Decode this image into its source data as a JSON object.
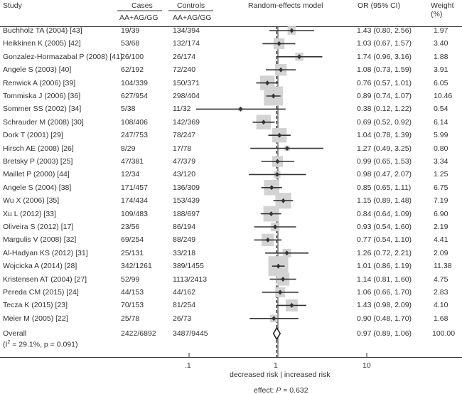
{
  "chart_data": {
    "type": "forest",
    "headers": {
      "study": "Study",
      "cases": "Cases",
      "cases_sub": "AA+AG/GG",
      "controls": "Controls",
      "controls_sub": "AA+AG/GG",
      "model": "Random-effects model",
      "or": "OR (95% CI)",
      "weight": "Weight",
      "weight_unit": "(%)"
    },
    "x_scale": "log",
    "x_ticks": [
      0.1,
      1,
      10
    ],
    "x_tick_labels": [
      ".1",
      "1",
      "10"
    ],
    "xlabel": "decreased risk | increased risk",
    "footer_prefix": "effect: ",
    "footer_p": "P",
    "footer_value": " = 0.632",
    "box_color": "#d3d3d3",
    "line_color": "#333333",
    "studies": [
      {
        "name": "Buchholz TA (2004) [43]",
        "cases": "19/39",
        "controls": "134/394",
        "or": 1.43,
        "lo": 0.8,
        "hi": 2.56,
        "ci": "1.43 (0.80, 2.56)",
        "weight": "1.97"
      },
      {
        "name": "Heikkinen K (2005) [42]",
        "cases": "53/68",
        "controls": "132/174",
        "or": 1.03,
        "lo": 0.67,
        "hi": 1.57,
        "ci": "1.03 (0.67, 1.57)",
        "weight": "3.40"
      },
      {
        "name": "Gonzalez-Hormazabal P (2008) [41]",
        "cases": "26/100",
        "controls": "26/174",
        "or": 1.74,
        "lo": 0.96,
        "hi": 3.16,
        "ci": "1.74 (0.96, 3.16)",
        "weight": "1.88"
      },
      {
        "name": "Angele S (2003) [40]",
        "cases": "62/192",
        "controls": "72/240",
        "or": 1.08,
        "lo": 0.73,
        "hi": 1.59,
        "ci": "1.08 (0.73, 1.59)",
        "weight": "3.91"
      },
      {
        "name": "Renwick A (2006) [39]",
        "cases": "104/339",
        "controls": "150/371",
        "or": 0.76,
        "lo": 0.57,
        "hi": 1.01,
        "ci": "0.76 (0.57, 1.01)",
        "weight": "6.05"
      },
      {
        "name": "Tommiska J (2006) [36]",
        "cases": "627/954",
        "controls": "298/404",
        "or": 0.89,
        "lo": 0.74,
        "hi": 1.07,
        "ci": "0.89 (0.74, 1.07)",
        "weight": "10.46"
      },
      {
        "name": "Sommer SS (2002) [34]",
        "cases": "5/38",
        "controls": "11/32",
        "or": 0.38,
        "lo": 0.12,
        "hi": 1.22,
        "ci": "0.38 (0.12, 1.22)",
        "weight": "0.54"
      },
      {
        "name": "Schrauder M (2008) [30]",
        "cases": "108/406",
        "controls": "142/369",
        "or": 0.69,
        "lo": 0.52,
        "hi": 0.92,
        "ci": "0.69 (0.52, 0.92)",
        "weight": "6.14"
      },
      {
        "name": "Dork T (2001) [29]",
        "cases": "247/753",
        "controls": "78/247",
        "or": 1.04,
        "lo": 0.78,
        "hi": 1.39,
        "ci": "1.04 (0.78, 1.39)",
        "weight": "5.99"
      },
      {
        "name": "Hirsch AE (2008) [26]",
        "cases": "8/29",
        "controls": "17/78",
        "or": 1.27,
        "lo": 0.49,
        "hi": 3.25,
        "ci": "1.27 (0.49, 3.25)",
        "weight": "0.80"
      },
      {
        "name": "Bretsky P (2003) [25]",
        "cases": "47/381",
        "controls": "47/379",
        "or": 0.99,
        "lo": 0.65,
        "hi": 1.53,
        "ci": "0.99 (0.65, 1.53)",
        "weight": "3.34"
      },
      {
        "name": "Maillet P (2000) [44]",
        "cases": "12/34",
        "controls": "43/120",
        "or": 0.98,
        "lo": 0.47,
        "hi": 2.07,
        "ci": "0.98 (0.47, 2.07)",
        "weight": "1.25"
      },
      {
        "name": "Angele S (2004) [38]",
        "cases": "171/457",
        "controls": "136/309",
        "or": 0.85,
        "lo": 0.65,
        "hi": 1.11,
        "ci": "0.85 (0.65, 1.11)",
        "weight": "6.75"
      },
      {
        "name": "Wu X (2006) [35]",
        "cases": "174/434",
        "controls": "153/439",
        "or": 1.15,
        "lo": 0.89,
        "hi": 1.48,
        "ci": "1.15 (0.89, 1.48)",
        "weight": "7.19"
      },
      {
        "name": "Xu L (2012) [33]",
        "cases": "109/483",
        "controls": "188/697",
        "or": 0.84,
        "lo": 0.64,
        "hi": 1.09,
        "ci": "0.84 (0.64, 1.09)",
        "weight": "6.90"
      },
      {
        "name": "Oliveira S (2012) [17]",
        "cases": "23/56",
        "controls": "86/194",
        "or": 0.93,
        "lo": 0.54,
        "hi": 1.6,
        "ci": "0.93 (0.54, 1.60)",
        "weight": "2.19"
      },
      {
        "name": "Margulis V (2008) [32]",
        "cases": "69/254",
        "controls": "88/249",
        "or": 0.77,
        "lo": 0.54,
        "hi": 1.1,
        "ci": "0.77 (0.54, 1.10)",
        "weight": "4.41"
      },
      {
        "name": "Al-Hadyan KS (2012) [31]",
        "cases": "25/131",
        "controls": "33/218",
        "or": 1.26,
        "lo": 0.72,
        "hi": 2.21,
        "ci": "1.26 (0.72, 2.21)",
        "weight": "2.09"
      },
      {
        "name": "Wojcicka A (2014) [28]",
        "cases": "342/1261",
        "controls": "389/1455",
        "or": 1.01,
        "lo": 0.86,
        "hi": 1.19,
        "ci": "1.01 (0.86, 1.19)",
        "weight": "11.38"
      },
      {
        "name": "Kristensen AT (2004) [27]",
        "cases": "52/99",
        "controls": "1113/2413",
        "or": 1.14,
        "lo": 0.81,
        "hi": 1.6,
        "ci": "1.14 (0.81, 1.60)",
        "weight": "4.75"
      },
      {
        "name": "Pereda CM (2015) [24]",
        "cases": "44/153",
        "controls": "44/162",
        "or": 1.06,
        "lo": 0.66,
        "hi": 1.7,
        "ci": "1.06 (0.66, 1.70)",
        "weight": "2.83"
      },
      {
        "name": "Tecza K (2015) [23]",
        "cases": "70/153",
        "controls": "81/254",
        "or": 1.43,
        "lo": 0.98,
        "hi": 2.09,
        "ci": "1.43 (0.98, 2.09)",
        "weight": "4.10"
      },
      {
        "name": "Meier M (2005) [22]",
        "cases": "25/78",
        "controls": "26/73",
        "or": 0.9,
        "lo": 0.48,
        "hi": 1.7,
        "ci": "0.90 (0.48, 1.70)",
        "weight": "1.68"
      }
    ],
    "overall": {
      "name": "Overall",
      "heterogeneity_prefix": "(I",
      "heterogeneity_sup": "2",
      "heterogeneity_rest": " = 29.1%, p = 0.091)",
      "cases": "2422/6892",
      "controls": "3487/9445",
      "or": 0.97,
      "lo": 0.89,
      "hi": 1.06,
      "ci": "0.97 (0.89, 1.06)",
      "weight": "100.00"
    }
  }
}
